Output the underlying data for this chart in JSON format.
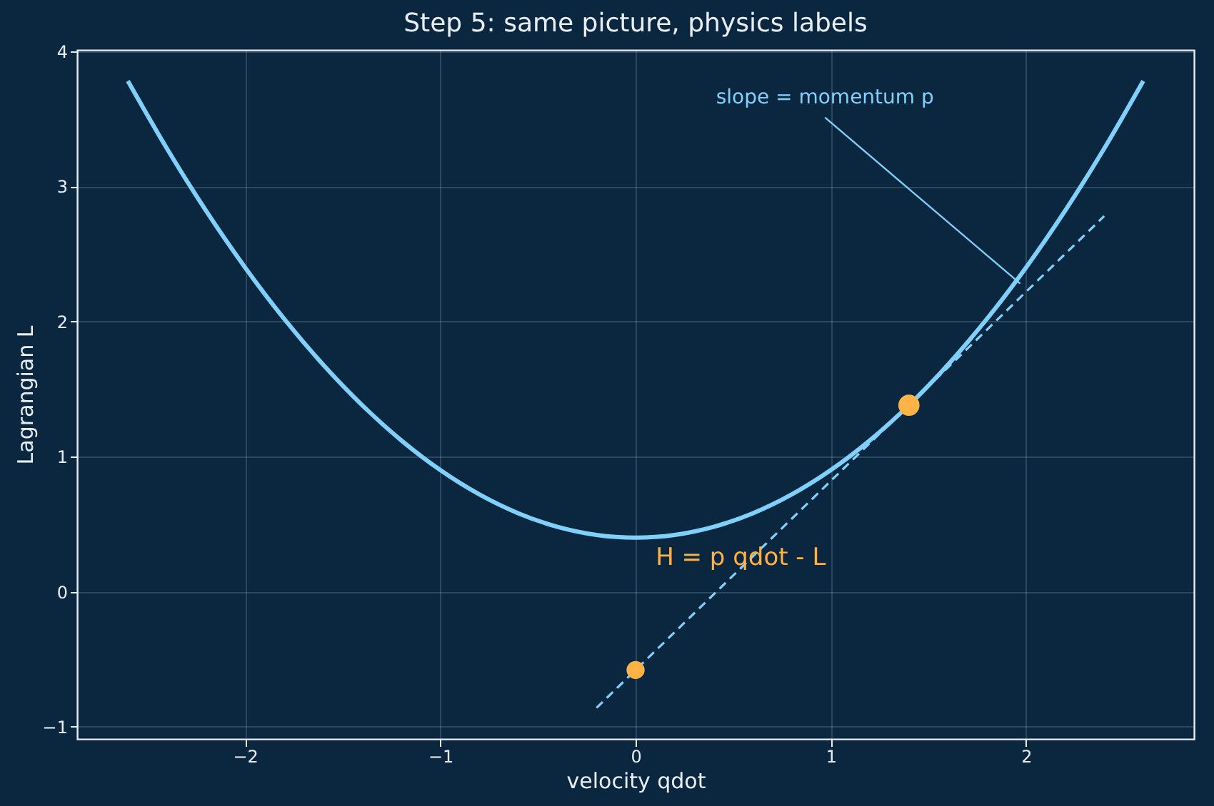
{
  "chart_data": {
    "type": "line",
    "title": "Step 5: same picture, physics labels",
    "xlabel": "velocity  qdot",
    "ylabel": "Lagrangian  L",
    "series": [
      {
        "color": "#7fd0fb",
        "line_style": "solid",
        "x": [
          -2.6,
          -2.4,
          -2.2,
          -2.0,
          -1.8,
          -1.6,
          -1.4,
          -1.2,
          -1.0,
          -0.8,
          -0.6,
          -0.4,
          -0.2,
          0.0,
          0.2,
          0.4,
          0.6,
          0.8,
          1.0,
          1.2,
          1.4,
          1.6,
          1.8,
          2.0,
          2.2,
          2.4,
          2.6
        ],
        "values": [
          3.78,
          3.28,
          2.82,
          2.4,
          2.02,
          1.68,
          1.38,
          1.12,
          0.9,
          0.72,
          0.58,
          0.48,
          0.42,
          0.4,
          0.42,
          0.48,
          0.58,
          0.72,
          0.9,
          1.12,
          1.38,
          1.68,
          2.02,
          2.4,
          2.82,
          3.28,
          3.78
        ]
      },
      {
        "type": "line",
        "color": "#7fd0fb",
        "line_style": "dashed",
        "x": [
          -0.2,
          2.4
        ],
        "values": [
          -0.86,
          2.78
        ]
      },
      {
        "type": "scatter",
        "color": "#ffb347",
        "marker": "circle",
        "x": [
          1.4
        ],
        "values": [
          1.38
        ]
      },
      {
        "type": "scatter",
        "color": "#ffb347",
        "marker": "circle",
        "x": [
          0.0
        ],
        "values": [
          -0.58
        ]
      }
    ],
    "annotations": [
      {
        "text": "slope = momentum p",
        "x": 1.97,
        "y": 2.28
      },
      "H = p qdot - L"
    ],
    "xlim": [
      -2.86,
      2.86
    ],
    "ylim": [
      -1.09,
      4.01
    ],
    "xticks": [
      -2,
      -1,
      0,
      1,
      2
    ],
    "yticks": [
      -1,
      0,
      1,
      2,
      3,
      4
    ],
    "grid": true
  }
}
